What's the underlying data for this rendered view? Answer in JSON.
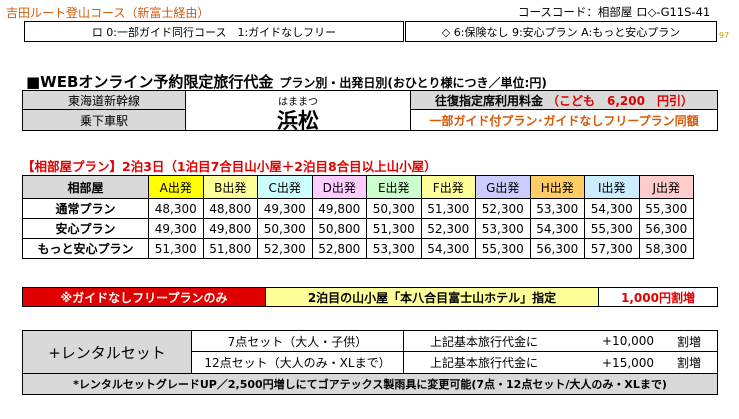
{
  "header": {
    "route_title": "吉田ルート登山コース（新富士経由）",
    "course_code": "コースコード：相部屋 ロ◇-G11S-41",
    "selector_left": "ロ 0:一部ガイド同行コース　1:ガイドなしフリー",
    "selector_right": "◇ 6:保険なし 9:安心プラン A:もっと安心プラン",
    "page_number": "97"
  },
  "web_section": {
    "heading": "■WEBオンライン予約限定旅行代金",
    "subheading": "プラン別・出発日別(おひとり様につき／単位:円)"
  },
  "info": {
    "line": "東海道新幹線",
    "station_label": "乗下車駅",
    "city_reading": "はままつ",
    "city": "浜松",
    "fare_label": "往復指定席利用料金",
    "fare_child": "（こども　6,200　円引）",
    "plan_note": "一部ガイド付プラン･ガイドなしフリープラン同額"
  },
  "price_table": {
    "title": "【相部屋プラン】2泊3日（1泊目7合目山小屋＋2泊目8合目以上山小屋）",
    "corner": "相部屋",
    "columns": [
      {
        "label": "A出発",
        "color": "#ffff00"
      },
      {
        "label": "B出発",
        "color": "#ffff99"
      },
      {
        "label": "C出発",
        "color": "#ccffff"
      },
      {
        "label": "D出発",
        "color": "#ffccff"
      },
      {
        "label": "E出発",
        "color": "#ccffcc"
      },
      {
        "label": "F出発",
        "color": "#ffff99"
      },
      {
        "label": "G出発",
        "color": "#ccccff"
      },
      {
        "label": "H出発",
        "color": "#ffcc66"
      },
      {
        "label": "I出発",
        "color": "#ccecff"
      },
      {
        "label": "J出発",
        "color": "#ffcccc"
      }
    ],
    "rows": [
      {
        "plan": "通常プラン",
        "prices": [
          "48,300",
          "48,800",
          "49,300",
          "49,800",
          "50,300",
          "51,300",
          "52,300",
          "53,300",
          "54,300",
          "55,300"
        ]
      },
      {
        "plan": "安心プラン",
        "prices": [
          "49,300",
          "49,800",
          "50,300",
          "50,800",
          "51,300",
          "52,300",
          "53,300",
          "54,300",
          "55,300",
          "56,300"
        ]
      },
      {
        "plan": "もっと安心プラン",
        "prices": [
          "51,300",
          "51,800",
          "52,300",
          "52,800",
          "53,300",
          "54,300",
          "55,300",
          "56,300",
          "57,300",
          "58,300"
        ]
      }
    ]
  },
  "guide_free": {
    "label": "※ガイドなしフリープランのみ",
    "hotel": "2泊目の山小屋「本八合目富士山ホテル」指定",
    "extra": "1,000円割増"
  },
  "rental": {
    "label": "+レンタルセット",
    "sets": [
      {
        "name": "7点セット（大人・子供）",
        "basis": "上記基本旅行代金に",
        "price": "+10,000",
        "unit": "割増"
      },
      {
        "name": "12点セット（大人のみ・XLまで）",
        "basis": "上記基本旅行代金に",
        "price": "+15,000",
        "unit": "割増"
      }
    ],
    "note": "*レンタルセットグレードUP／2,500円増しにてゴアテックス製雨具に変更可能(7点・12点セット/大人のみ・XLまで)"
  }
}
